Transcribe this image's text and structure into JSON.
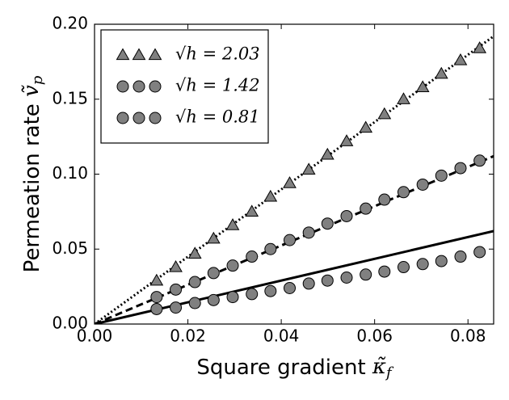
{
  "chart_data": {
    "type": "scatter",
    "xlabel": {
      "text": "Square gradient ",
      "symbol": "κ̃",
      "subscript": "f"
    },
    "ylabel": {
      "text": "Permeation rate ",
      "symbol": "ṽ",
      "subscript": "p"
    },
    "xlim": [
      0,
      0.0855
    ],
    "ylim": [
      0,
      0.2
    ],
    "xticks": [
      {
        "value": 0,
        "label": "0.00"
      },
      {
        "value": 0.02,
        "label": "0.02"
      },
      {
        "value": 0.04,
        "label": "0.04"
      },
      {
        "value": 0.06,
        "label": "0.06"
      },
      {
        "value": 0.08,
        "label": "0.08"
      }
    ],
    "yticks": [
      {
        "value": 0,
        "label": "0.00"
      },
      {
        "value": 0.05,
        "label": "0.05"
      },
      {
        "value": 0.1,
        "label": "0.10"
      },
      {
        "value": 0.15,
        "label": "0.15"
      },
      {
        "value": 0.2,
        "label": "0.20"
      }
    ],
    "legend": "upper left",
    "x": [
      0.0133,
      0.0174,
      0.0215,
      0.0255,
      0.0296,
      0.0337,
      0.0377,
      0.0418,
      0.0459,
      0.0499,
      0.054,
      0.0581,
      0.0621,
      0.0662,
      0.0703,
      0.0743,
      0.0784,
      0.0825
    ],
    "series": [
      {
        "name": "√h = 2.03",
        "marker": "triangle",
        "color": "#808080",
        "values": [
          0.029,
          0.038,
          0.047,
          0.057,
          0.066,
          0.075,
          0.085,
          0.094,
          0.103,
          0.113,
          0.122,
          0.131,
          0.14,
          0.15,
          0.158,
          0.167,
          0.176,
          0.184
        ]
      },
      {
        "name": "√h = 1.42",
        "marker": "circle",
        "color": "#808080",
        "values": [
          0.018,
          0.023,
          0.028,
          0.034,
          0.039,
          0.045,
          0.05,
          0.056,
          0.061,
          0.067,
          0.072,
          0.077,
          0.083,
          0.088,
          0.093,
          0.099,
          0.104,
          0.109
        ]
      },
      {
        "name": "√h = 0.81",
        "marker": "circle",
        "color": "#808080",
        "values": [
          0.01,
          0.011,
          0.014,
          0.016,
          0.018,
          0.02,
          0.022,
          0.024,
          0.027,
          0.029,
          0.031,
          0.033,
          0.035,
          0.038,
          0.04,
          0.042,
          0.045,
          0.048
        ]
      }
    ],
    "reference_lines": [
      {
        "style": "dotted",
        "color": "#000000",
        "x": [
          0,
          0.0855
        ],
        "values": [
          0,
          0.192
        ]
      },
      {
        "style": "dashed",
        "color": "#000000",
        "x": [
          0,
          0.0855
        ],
        "values": [
          0,
          0.112
        ]
      },
      {
        "style": "solid",
        "color": "#000000",
        "x": [
          0,
          0.0855
        ],
        "values": [
          0,
          0.062
        ]
      }
    ]
  }
}
